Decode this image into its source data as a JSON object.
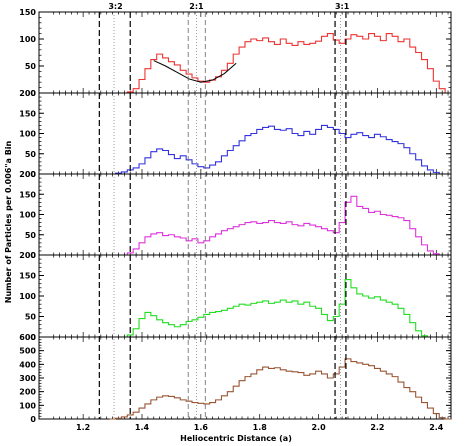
{
  "chart_data": {
    "type": "line",
    "style": "step-histogram, five vertically stacked panels sharing one x axis",
    "xlabel": "Heliocentric Distance (a)",
    "ylabel": "Number of Particles per 0.006\"a Bin",
    "xlim": [
      1.05,
      2.45
    ],
    "x_ticks": [
      "1.2",
      "1.4",
      "1.6",
      "1.8",
      "2.0",
      "2.2",
      "2.4"
    ],
    "grid": false,
    "resonance_labels": [
      {
        "label": "3:2",
        "x": 1.31
      },
      {
        "label": "2:1",
        "x": 1.585
      },
      {
        "label": "3:1",
        "x": 2.08
      }
    ],
    "vertical_lines": {
      "dashed_heavy": [
        1.255,
        1.36,
        2.056,
        2.093
      ],
      "dashed_light": [
        1.557,
        1.615
      ],
      "dotted": [
        1.305,
        1.585,
        2.075
      ]
    },
    "panels": [
      {
        "color": "#ee3333",
        "ylim": [
          0,
          150
        ],
        "yticks": [
          "0",
          "50",
          "100",
          "150"
        ],
        "series": [
          {
            "x": [
              1.36,
              1.38,
              1.4,
              1.42,
              1.44,
              1.46,
              1.48,
              1.5,
              1.52,
              1.54,
              1.56,
              1.58,
              1.6,
              1.62,
              1.64,
              1.66,
              1.68,
              1.7,
              1.72,
              1.74,
              1.76,
              1.78,
              1.8,
              1.82,
              1.84,
              1.86,
              1.88,
              1.9,
              1.92,
              1.94,
              1.96,
              1.98,
              2.0,
              2.02,
              2.04,
              2.06,
              2.08,
              2.1,
              2.12,
              2.14,
              2.16,
              2.18,
              2.2,
              2.22,
              2.24,
              2.26,
              2.28,
              2.3,
              2.32,
              2.34,
              2.36,
              2.38,
              2.4,
              2.42
            ],
            "y": [
              2,
              8,
              25,
              45,
              62,
              72,
              65,
              58,
              52,
              42,
              35,
              28,
              22,
              20,
              24,
              30,
              42,
              55,
              72,
              85,
              95,
              100,
              97,
              102,
              95,
              90,
              100,
              92,
              88,
              95,
              90,
              92,
              96,
              105,
              110,
              98,
              92,
              100,
              108,
              105,
              100,
              110,
              105,
              97,
              110,
              105,
              95,
              100,
              85,
              75,
              62,
              45,
              22,
              8
            ]
          }
        ],
        "fit_curve": {
          "color": "#000000",
          "x": [
            1.44,
            1.48,
            1.52,
            1.56,
            1.6,
            1.64,
            1.68,
            1.72
          ],
          "y": [
            60,
            50,
            38,
            26,
            20,
            24,
            36,
            55
          ]
        }
      },
      {
        "color": "#3333dd",
        "ylim": [
          0,
          200
        ],
        "yticks": [
          "0",
          "50",
          "100",
          "150",
          "200"
        ],
        "series": [
          {
            "x": [
              1.3,
              1.32,
              1.34,
              1.36,
              1.38,
              1.4,
              1.42,
              1.44,
              1.46,
              1.48,
              1.5,
              1.52,
              1.54,
              1.56,
              1.58,
              1.6,
              1.62,
              1.64,
              1.66,
              1.68,
              1.7,
              1.72,
              1.74,
              1.76,
              1.78,
              1.8,
              1.82,
              1.84,
              1.86,
              1.88,
              1.9,
              1.92,
              1.94,
              1.96,
              1.98,
              2.0,
              2.02,
              2.04,
              2.06,
              2.08,
              2.1,
              2.12,
              2.14,
              2.16,
              2.18,
              2.2,
              2.22,
              2.24,
              2.26,
              2.28,
              2.3,
              2.32,
              2.34,
              2.36,
              2.38,
              2.4,
              2.42
            ],
            "y": [
              0,
              2,
              5,
              10,
              15,
              25,
              40,
              55,
              62,
              58,
              48,
              38,
              45,
              35,
              25,
              18,
              15,
              22,
              30,
              45,
              58,
              70,
              82,
              95,
              100,
              110,
              115,
              118,
              110,
              108,
              112,
              100,
              95,
              105,
              98,
              110,
              120,
              115,
              110,
              100,
              90,
              98,
              102,
              95,
              90,
              98,
              92,
              85,
              80,
              75,
              65,
              50,
              35,
              20,
              10,
              4,
              0
            ]
          }
        ]
      },
      {
        "color": "#dd33dd",
        "ylim": [
          0,
          200
        ],
        "yticks": [
          "0",
          "50",
          "100",
          "150",
          "200"
        ],
        "series": [
          {
            "x": [
              1.34,
              1.36,
              1.38,
              1.4,
              1.42,
              1.44,
              1.46,
              1.48,
              1.5,
              1.52,
              1.54,
              1.56,
              1.58,
              1.6,
              1.62,
              1.64,
              1.66,
              1.68,
              1.7,
              1.72,
              1.74,
              1.76,
              1.78,
              1.8,
              1.82,
              1.84,
              1.86,
              1.88,
              1.9,
              1.92,
              1.94,
              1.96,
              1.98,
              2.0,
              2.02,
              2.04,
              2.06,
              2.08,
              2.1,
              2.12,
              2.14,
              2.16,
              2.18,
              2.2,
              2.22,
              2.24,
              2.26,
              2.28,
              2.3,
              2.32,
              2.34,
              2.36,
              2.38,
              2.4,
              2.42
            ],
            "y": [
              0,
              5,
              15,
              30,
              45,
              52,
              55,
              48,
              50,
              45,
              42,
              35,
              40,
              30,
              35,
              45,
              52,
              60,
              65,
              70,
              75,
              80,
              82,
              78,
              80,
              85,
              80,
              78,
              82,
              75,
              72,
              78,
              74,
              70,
              65,
              60,
              55,
              80,
              130,
              145,
              120,
              115,
              105,
              108,
              100,
              98,
              95,
              92,
              85,
              65,
              45,
              25,
              10,
              3,
              0
            ]
          }
        ]
      },
      {
        "color": "#22dd22",
        "ylim": [
          0,
          200
        ],
        "yticks": [
          "0",
          "50",
          "100",
          "150",
          "200"
        ],
        "series": [
          {
            "x": [
              1.36,
              1.38,
              1.4,
              1.42,
              1.44,
              1.46,
              1.48,
              1.5,
              1.52,
              1.54,
              1.56,
              1.58,
              1.6,
              1.62,
              1.64,
              1.66,
              1.68,
              1.7,
              1.72,
              1.74,
              1.76,
              1.78,
              1.8,
              1.82,
              1.84,
              1.86,
              1.88,
              1.9,
              1.92,
              1.94,
              1.96,
              1.98,
              2.0,
              2.02,
              2.04,
              2.06,
              2.08,
              2.1,
              2.12,
              2.14,
              2.16,
              2.18,
              2.2,
              2.22,
              2.24,
              2.26,
              2.28,
              2.3,
              2.32,
              2.34,
              2.36
            ],
            "y": [
              5,
              20,
              45,
              60,
              52,
              42,
              35,
              30,
              25,
              30,
              38,
              42,
              48,
              55,
              60,
              62,
              65,
              70,
              75,
              80,
              78,
              82,
              85,
              88,
              82,
              85,
              90,
              85,
              88,
              80,
              85,
              75,
              70,
              55,
              40,
              50,
              80,
              140,
              120,
              105,
              100,
              95,
              98,
              90,
              85,
              80,
              70,
              55,
              35,
              15,
              3
            ]
          }
        ]
      },
      {
        "color": "#995533",
        "ylim": [
          0,
          600
        ],
        "yticks": [
          "0",
          "100",
          "200",
          "300",
          "400",
          "500",
          "600"
        ],
        "series": [
          {
            "x": [
              1.3,
              1.32,
              1.34,
              1.36,
              1.38,
              1.4,
              1.42,
              1.44,
              1.46,
              1.48,
              1.5,
              1.52,
              1.54,
              1.56,
              1.58,
              1.6,
              1.62,
              1.64,
              1.66,
              1.68,
              1.7,
              1.72,
              1.74,
              1.76,
              1.78,
              1.8,
              1.82,
              1.84,
              1.86,
              1.88,
              1.9,
              1.92,
              1.94,
              1.96,
              1.98,
              2.0,
              2.02,
              2.04,
              2.06,
              2.08,
              2.1,
              2.12,
              2.14,
              2.16,
              2.18,
              2.2,
              2.22,
              2.24,
              2.26,
              2.28,
              2.3,
              2.32,
              2.34,
              2.36,
              2.38,
              2.4,
              2.42,
              2.44
            ],
            "y": [
              0,
              5,
              15,
              30,
              50,
              80,
              110,
              140,
              160,
              170,
              165,
              155,
              140,
              130,
              120,
              115,
              110,
              120,
              140,
              170,
              200,
              240,
              280,
              310,
              330,
              360,
              380,
              370,
              375,
              360,
              350,
              345,
              340,
              320,
              330,
              350,
              330,
              300,
              330,
              380,
              440,
              420,
              410,
              400,
              390,
              370,
              350,
              330,
              310,
              270,
              230,
              200,
              160,
              120,
              80,
              40,
              10,
              0
            ]
          }
        ]
      }
    ]
  }
}
